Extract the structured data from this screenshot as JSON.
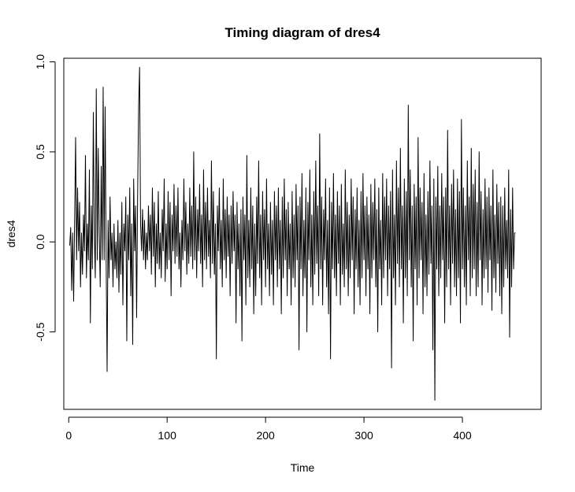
{
  "chart_data": {
    "type": "line",
    "title": "Timing diagram of dres4",
    "xlabel": "Time",
    "ylabel": "dres4",
    "xlim": [
      -5,
      480
    ],
    "ylim": [
      -0.93,
      1.02
    ],
    "x_ticks": [
      0,
      100,
      200,
      300,
      400
    ],
    "x_tick_labels": [
      "0",
      "100",
      "200",
      "300",
      "400"
    ],
    "y_ticks": [
      -0.5,
      0.0,
      0.5,
      1.0
    ],
    "y_tick_labels": [
      "-0.5",
      "0.0",
      "0.5",
      "1.0"
    ],
    "grid": false,
    "legend": "none",
    "line_color": "#000000",
    "series": [
      {
        "x_start": 1,
        "x_step": 1,
        "values": [
          -0.02,
          0.08,
          -0.27,
          0.05,
          -0.33,
          0.12,
          0.58,
          -0.1,
          0.3,
          -0.05,
          0.22,
          -0.25,
          0.05,
          -0.18,
          0.15,
          -0.05,
          0.48,
          -0.2,
          0.1,
          -0.1,
          0.4,
          -0.45,
          0.2,
          -0.15,
          0.72,
          0.05,
          -0.2,
          0.85,
          -0.1,
          0.52,
          0.05,
          -0.25,
          0.42,
          -0.1,
          0.86,
          -0.1,
          0.75,
          -0.08,
          -0.72,
          0.12,
          -0.2,
          0.25,
          -0.1,
          0.05,
          -0.25,
          0.1,
          -0.15,
          0.0,
          -0.2,
          0.12,
          -0.28,
          0.05,
          -0.18,
          0.22,
          -0.35,
          0.1,
          -0.05,
          0.25,
          -0.55,
          0.15,
          -0.1,
          0.3,
          -0.3,
          0.1,
          -0.57,
          0.35,
          -0.05,
          0.2,
          -0.42,
          0.25,
          0.75,
          0.97,
          0.1,
          -0.05,
          0.18,
          -0.1,
          0.12,
          -0.15,
          0.05,
          -0.1,
          0.2,
          -0.05,
          0.15,
          -0.18,
          0.3,
          -0.08,
          0.22,
          -0.25,
          0.1,
          -0.12,
          0.28,
          -0.15,
          0.05,
          -0.2,
          0.18,
          -0.05,
          0.35,
          -0.22,
          0.1,
          -0.15,
          0.28,
          -0.1,
          0.22,
          -0.3,
          0.15,
          -0.05,
          0.32,
          -0.12,
          0.2,
          -0.08,
          0.3,
          -0.15,
          0.05,
          -0.25,
          0.12,
          -0.1,
          0.35,
          -0.05,
          0.22,
          -0.18,
          0.1,
          -0.12,
          0.3,
          -0.08,
          0.2,
          -0.15,
          0.5,
          -0.1,
          0.25,
          -0.2,
          0.18,
          -0.05,
          0.32,
          -0.12,
          0.15,
          -0.25,
          0.4,
          -0.1,
          0.22,
          -0.15,
          0.3,
          -0.08,
          0.12,
          -0.2,
          0.45,
          -0.12,
          0.28,
          -0.18,
          0.1,
          -0.65,
          0.2,
          -0.05,
          0.3,
          -0.15,
          0.12,
          -0.25,
          0.35,
          -0.1,
          0.18,
          -0.2,
          0.25,
          -0.08,
          0.15,
          -0.3,
          0.2,
          -0.12,
          0.28,
          -0.05,
          0.15,
          -0.45,
          0.22,
          -0.15,
          0.1,
          -0.3,
          0.18,
          -0.55,
          0.25,
          -0.1,
          0.15,
          -0.35,
          0.48,
          -0.2,
          0.12,
          -0.25,
          0.3,
          -0.15,
          0.2,
          -0.4,
          0.1,
          -0.3,
          0.25,
          -0.12,
          0.45,
          -0.2,
          0.15,
          -0.35,
          0.28,
          -0.1,
          0.18,
          -0.25,
          0.35,
          -0.15,
          0.1,
          -0.3,
          0.22,
          -0.18,
          0.12,
          -0.35,
          0.28,
          -0.1,
          0.2,
          -0.25,
          0.3,
          -0.15,
          0.12,
          -0.4,
          0.25,
          -0.2,
          0.35,
          -0.1,
          0.18,
          -0.3,
          0.22,
          -0.15,
          0.1,
          -0.35,
          0.28,
          -0.2,
          0.15,
          -0.25,
          0.32,
          -0.1,
          0.2,
          -0.6,
          0.25,
          -0.15,
          0.38,
          -0.3,
          0.12,
          -0.2,
          0.3,
          -0.5,
          0.22,
          -0.1,
          0.4,
          -0.25,
          0.15,
          -0.35,
          0.28,
          -0.18,
          0.45,
          -0.12,
          0.2,
          -0.3,
          0.6,
          -0.15,
          0.25,
          -0.35,
          0.18,
          -0.1,
          0.35,
          -0.25,
          0.12,
          -0.4,
          0.3,
          -0.65,
          0.22,
          -0.15,
          0.38,
          -0.2,
          0.15,
          -0.3,
          0.28,
          -0.12,
          0.2,
          -0.35,
          0.32,
          -0.18,
          0.1,
          -0.25,
          0.4,
          -0.15,
          0.22,
          -0.3,
          0.15,
          -0.2,
          0.35,
          -0.1,
          0.25,
          -0.4,
          0.18,
          -0.15,
          0.3,
          -0.25,
          0.12,
          -0.35,
          0.28,
          -0.2,
          0.38,
          -0.1,
          0.2,
          -0.3,
          0.25,
          -0.15,
          0.15,
          -0.4,
          0.32,
          -0.2,
          0.22,
          -0.1,
          0.35,
          -0.25,
          0.18,
          -0.5,
          0.3,
          -0.15,
          0.12,
          -0.35,
          0.38,
          -0.2,
          0.25,
          -0.1,
          0.35,
          -0.3,
          0.2,
          -0.15,
          0.28,
          -0.7,
          0.4,
          -0.2,
          0.15,
          -0.35,
          0.45,
          -0.12,
          0.3,
          -0.25,
          0.52,
          -0.15,
          0.2,
          -0.45,
          0.35,
          -0.2,
          0.28,
          -0.3,
          0.76,
          -0.1,
          0.4,
          -0.25,
          0.2,
          -0.55,
          0.32,
          -0.15,
          0.25,
          -0.35,
          0.58,
          -0.2,
          0.3,
          -0.1,
          0.22,
          -0.4,
          0.38,
          -0.25,
          0.15,
          -0.3,
          0.28,
          -0.18,
          0.45,
          -0.12,
          0.2,
          -0.6,
          0.35,
          -0.88,
          0.25,
          -0.15,
          0.42,
          -0.3,
          0.2,
          -0.2,
          0.38,
          -0.1,
          0.25,
          -0.45,
          0.3,
          -0.25,
          0.62,
          -0.15,
          0.2,
          -0.35,
          0.32,
          -0.12,
          0.4,
          -0.25,
          0.18,
          -0.3,
          0.35,
          -0.2,
          0.28,
          -0.45,
          0.68,
          -0.15,
          0.3,
          -0.25,
          0.2,
          -0.35,
          0.45,
          -0.1,
          0.25,
          -0.3,
          0.52,
          -0.2,
          0.32,
          -0.15,
          0.4,
          -0.3,
          0.22,
          -0.25,
          0.5,
          -0.1,
          0.28,
          -0.35,
          0.18,
          -0.2,
          0.35,
          -0.15,
          0.25,
          -0.28,
          0.3,
          -0.1,
          0.2,
          -0.38,
          0.4,
          -0.2,
          0.15,
          -0.28,
          0.32,
          -0.12,
          0.22,
          -0.3,
          0.25,
          -0.4,
          0.2,
          -0.25,
          0.3,
          -0.15,
          0.12,
          -0.2,
          0.4,
          -0.53,
          0.18,
          -0.25,
          0.3,
          -0.15,
          0.05,
          0.05
        ]
      }
    ]
  }
}
